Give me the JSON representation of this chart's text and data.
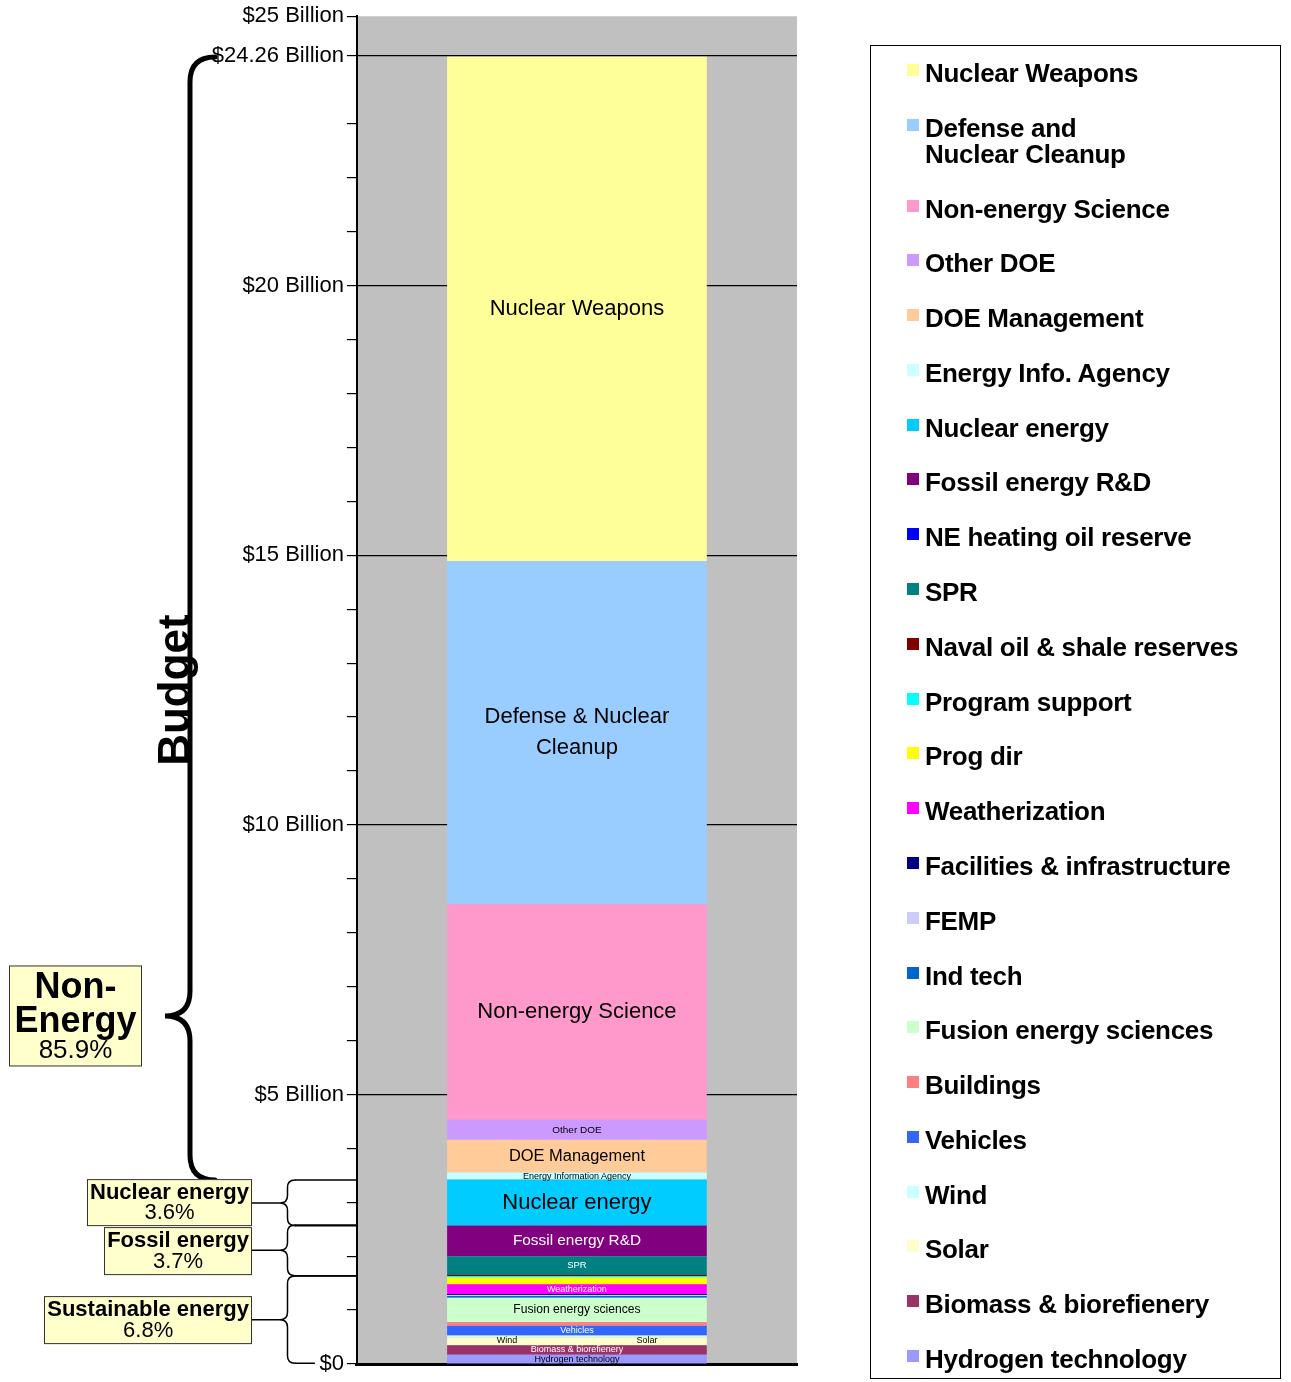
{
  "chart_data": {
    "type": "bar",
    "stacked": true,
    "ylabel": "Budget",
    "categories": [
      null
    ],
    "ylim": [
      0,
      25
    ],
    "yticks": [
      {
        "value": 0,
        "label": "$0"
      },
      {
        "value": 1,
        "label": null
      },
      {
        "value": 2,
        "label": null
      },
      {
        "value": 3,
        "label": null
      },
      {
        "value": 4,
        "label": null
      },
      {
        "value": 5,
        "label": "$5 Billion"
      },
      {
        "value": 6,
        "label": null
      },
      {
        "value": 7,
        "label": null
      },
      {
        "value": 8,
        "label": null
      },
      {
        "value": 9,
        "label": null
      },
      {
        "value": 10,
        "label": "$10 Billion"
      },
      {
        "value": 11,
        "label": null
      },
      {
        "value": 12,
        "label": null
      },
      {
        "value": 13,
        "label": null
      },
      {
        "value": 14,
        "label": null
      },
      {
        "value": 15,
        "label": "$15 Billion"
      },
      {
        "value": 16,
        "label": null
      },
      {
        "value": 17,
        "label": null
      },
      {
        "value": 18,
        "label": null
      },
      {
        "value": 19,
        "label": null
      },
      {
        "value": 20,
        "label": "$20 Billion"
      },
      {
        "value": 21,
        "label": null
      },
      {
        "value": 22,
        "label": null
      },
      {
        "value": 23,
        "label": null
      },
      {
        "value": 24.26,
        "label": "$24.26 Billion"
      },
      {
        "value": 25,
        "label": "$25 Billion"
      }
    ],
    "grid": "y",
    "legend": "right",
    "tick_labels": "y",
    "series": [
      {
        "name": "Hydrogen technology",
        "color": "#9999ff",
        "values": [
          0.17
        ]
      },
      {
        "name": "Biomass & biorefienery",
        "color": "#993366",
        "values": [
          0.18
        ]
      },
      {
        "name": "Solar",
        "color": "#ffffcc",
        "values": [
          0.14
        ]
      },
      {
        "name": "Wind",
        "color": "#ccffff",
        "values": [
          0.04
        ]
      },
      {
        "name": "Vehicles",
        "color": "#3366ff",
        "values": [
          0.18
        ]
      },
      {
        "name": "Buildings",
        "color": "#ff8080",
        "values": [
          0.07
        ]
      },
      {
        "name": "Fusion energy sciences",
        "color": "#ccffcc",
        "values": [
          0.45
        ]
      },
      {
        "name": "Ind tech",
        "color": "#0066cc",
        "values": [
          0.03
        ]
      },
      {
        "name": "FEMP",
        "color": "#ccccff",
        "values": [
          0.02
        ]
      },
      {
        "name": "Facilities & infrastructure",
        "color": "#000080",
        "values": [
          0.02
        ]
      },
      {
        "name": "Weatherization",
        "color": "#ff00ff",
        "values": [
          0.18
        ]
      },
      {
        "name": "Prog dir",
        "color": "#ffff00",
        "values": [
          0.13
        ]
      },
      {
        "name": "Program support",
        "color": "#00ffff",
        "values": [
          0.02
        ]
      },
      {
        "name": "Naval oil & shale reserves",
        "color": "#800000",
        "values": [
          0.02
        ]
      },
      {
        "name": "SPR",
        "color": "#008080",
        "values": [
          0.35
        ]
      },
      {
        "name": "NE heating oil reserve",
        "color": "#0000ff",
        "values": [
          null
        ]
      },
      {
        "name": "Fossil energy R&D",
        "color": "#800080",
        "values": [
          0.57
        ]
      },
      {
        "name": "Nuclear energy",
        "color": "#00ccff",
        "values": [
          0.85
        ]
      },
      {
        "name": "Energy Info. Agency",
        "color": "#ccffff",
        "values": [
          0.13
        ]
      },
      {
        "name": "DOE Management",
        "color": "#ffcc99",
        "values": [
          0.61
        ]
      },
      {
        "name": "Other DOE",
        "color": "#cc99ff",
        "values": [
          0.37
        ]
      },
      {
        "name": "Non-energy Science",
        "color": "#ff99cc",
        "values": [
          4.0
        ]
      },
      {
        "name": "Defense and\nNuclear Cleanup",
        "color": "#99ccff",
        "values": [
          6.36
        ]
      },
      {
        "name": "Nuclear Weapons",
        "color": "#ffff99",
        "values": [
          9.36
        ]
      }
    ],
    "annotations": [
      "Non-Energy\n85.9%",
      "Nuclear energy\n3.6%",
      "Fossil energy\n3.7%",
      "Sustainable energy\n6.8%",
      "Nuclear Weapons",
      "Defense & Nuclear\nCleanup",
      "Non-energy Science",
      "Other DOE",
      "DOE Management",
      "Energy Information Agency",
      "Nuclear energy",
      "Fossil energy R&D",
      "SPR",
      "Weatherization",
      "Fusion energy sciences",
      "Vehicles",
      "Wind",
      "Solar",
      "Biomass & biorefienery",
      "Hydrogen technology"
    ]
  }
}
